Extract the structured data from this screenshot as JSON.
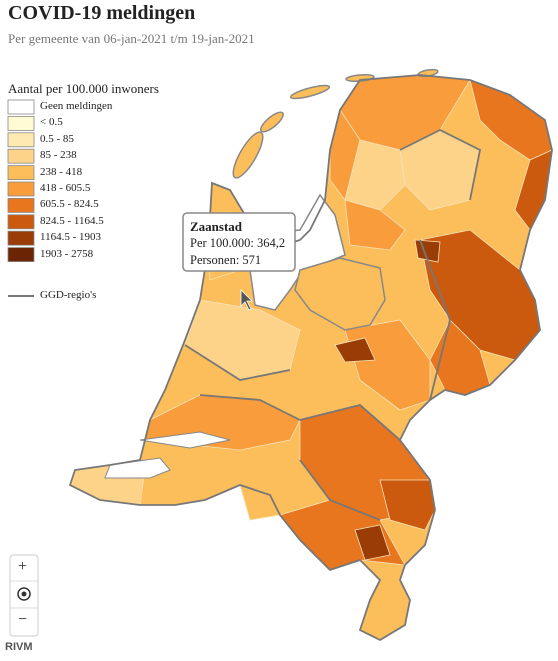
{
  "header": {
    "title": "COVID-19 meldingen",
    "subtitle": "Per gemeente van 06-jan-2021 t/m 19-jan-2021"
  },
  "legend": {
    "title": "Aantal per 100.000 inwoners",
    "items": [
      {
        "label": "Geen meldingen",
        "color": "#ffffff"
      },
      {
        "label": "< 0.5",
        "color": "#fffbd2"
      },
      {
        "label": "0.5 - 85",
        "color": "#fee9b0"
      },
      {
        "label": "85 - 238",
        "color": "#fdd38a"
      },
      {
        "label": "238 - 418",
        "color": "#fbbe5a"
      },
      {
        "label": "418 - 605.5",
        "color": "#f99c3c"
      },
      {
        "label": "605.5 - 824.5",
        "color": "#e8761e"
      },
      {
        "label": "824.5 - 1164.5",
        "color": "#cc5a0e"
      },
      {
        "label": "1164.5 - 1903",
        "color": "#9a3c06"
      },
      {
        "label": "1903 - 2758",
        "color": "#6b2504"
      }
    ],
    "boundary": {
      "label": "GGD-regio's",
      "color": "#777777"
    }
  },
  "tooltip": {
    "name": "Zaanstad",
    "lines": [
      "Per 100.000: 364,2",
      "Personen: 571"
    ]
  },
  "controls": {
    "zoom_in": "+",
    "zoom_out": "−"
  },
  "attribution": "RIVM"
}
